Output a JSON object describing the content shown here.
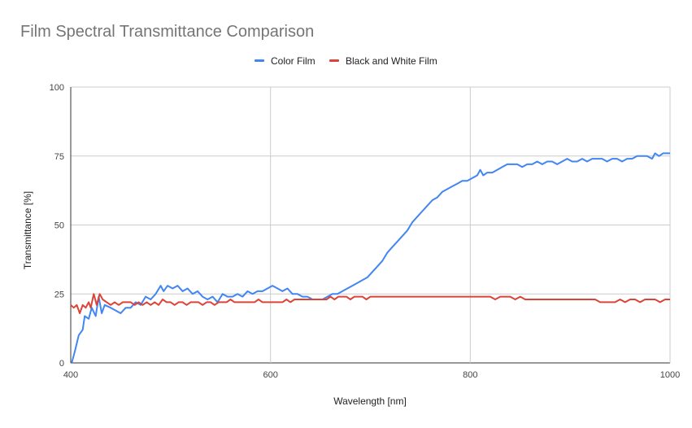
{
  "chart_data": {
    "type": "line",
    "title": "Film Spectral Transmittance Comparison",
    "xlabel": "Wavelength [nm]",
    "ylabel": "Transmittance [%]",
    "xlim": [
      400,
      1000
    ],
    "ylim": [
      0,
      100
    ],
    "x_ticks": [
      "400",
      "600",
      "800",
      "1000"
    ],
    "y_ticks": [
      "0",
      "25",
      "50",
      "75",
      "100"
    ],
    "grid": true,
    "legend_position": "top",
    "series": [
      {
        "name": "Color Film",
        "color": "#4285f4",
        "points": [
          [
            401,
            0
          ],
          [
            404,
            4
          ],
          [
            408,
            10
          ],
          [
            412,
            12
          ],
          [
            414,
            17
          ],
          [
            418,
            16
          ],
          [
            421,
            20
          ],
          [
            425,
            17
          ],
          [
            428,
            24
          ],
          [
            431,
            18
          ],
          [
            434,
            21
          ],
          [
            440,
            20
          ],
          [
            445,
            19
          ],
          [
            450,
            18
          ],
          [
            455,
            20
          ],
          [
            460,
            20
          ],
          [
            465,
            22
          ],
          [
            470,
            21
          ],
          [
            475,
            24
          ],
          [
            480,
            23
          ],
          [
            485,
            25
          ],
          [
            490,
            28
          ],
          [
            493,
            26
          ],
          [
            497,
            28
          ],
          [
            502,
            27
          ],
          [
            507,
            28
          ],
          [
            512,
            26
          ],
          [
            517,
            27
          ],
          [
            522,
            25
          ],
          [
            527,
            26
          ],
          [
            532,
            24
          ],
          [
            537,
            23
          ],
          [
            542,
            24
          ],
          [
            547,
            22
          ],
          [
            552,
            25
          ],
          [
            557,
            24
          ],
          [
            562,
            24
          ],
          [
            567,
            25
          ],
          [
            572,
            24
          ],
          [
            577,
            26
          ],
          [
            582,
            25
          ],
          [
            587,
            26
          ],
          [
            592,
            26
          ],
          [
            597,
            27
          ],
          [
            602,
            28
          ],
          [
            607,
            27
          ],
          [
            612,
            26
          ],
          [
            617,
            27
          ],
          [
            622,
            25
          ],
          [
            627,
            25
          ],
          [
            632,
            24
          ],
          [
            637,
            24
          ],
          [
            642,
            23
          ],
          [
            647,
            23
          ],
          [
            652,
            23
          ],
          [
            657,
            24
          ],
          [
            662,
            25
          ],
          [
            667,
            25
          ],
          [
            672,
            26
          ],
          [
            677,
            27
          ],
          [
            682,
            28
          ],
          [
            687,
            29
          ],
          [
            692,
            30
          ],
          [
            697,
            31
          ],
          [
            702,
            33
          ],
          [
            707,
            35
          ],
          [
            712,
            37
          ],
          [
            717,
            40
          ],
          [
            722,
            42
          ],
          [
            727,
            44
          ],
          [
            732,
            46
          ],
          [
            737,
            48
          ],
          [
            742,
            51
          ],
          [
            747,
            53
          ],
          [
            752,
            55
          ],
          [
            757,
            57
          ],
          [
            762,
            59
          ],
          [
            767,
            60
          ],
          [
            772,
            62
          ],
          [
            777,
            63
          ],
          [
            782,
            64
          ],
          [
            787,
            65
          ],
          [
            792,
            66
          ],
          [
            797,
            66
          ],
          [
            802,
            67
          ],
          [
            807,
            68
          ],
          [
            810,
            70
          ],
          [
            813,
            68
          ],
          [
            817,
            69
          ],
          [
            822,
            69
          ],
          [
            827,
            70
          ],
          [
            832,
            71
          ],
          [
            837,
            72
          ],
          [
            842,
            72
          ],
          [
            847,
            72
          ],
          [
            852,
            71
          ],
          [
            857,
            72
          ],
          [
            862,
            72
          ],
          [
            867,
            73
          ],
          [
            872,
            72
          ],
          [
            877,
            73
          ],
          [
            882,
            73
          ],
          [
            887,
            72
          ],
          [
            892,
            73
          ],
          [
            897,
            74
          ],
          [
            902,
            73
          ],
          [
            907,
            73
          ],
          [
            912,
            74
          ],
          [
            917,
            73
          ],
          [
            922,
            74
          ],
          [
            927,
            74
          ],
          [
            932,
            74
          ],
          [
            937,
            73
          ],
          [
            942,
            74
          ],
          [
            947,
            74
          ],
          [
            952,
            73
          ],
          [
            957,
            74
          ],
          [
            962,
            74
          ],
          [
            967,
            75
          ],
          [
            972,
            75
          ],
          [
            977,
            75
          ],
          [
            982,
            74
          ],
          [
            985,
            76
          ],
          [
            989,
            75
          ],
          [
            993,
            76
          ],
          [
            997,
            76
          ],
          [
            1000,
            76
          ]
        ]
      },
      {
        "name": "Black and White Film",
        "color": "#db4437",
        "points": [
          [
            400,
            21
          ],
          [
            403,
            20
          ],
          [
            406,
            21
          ],
          [
            409,
            18
          ],
          [
            412,
            21
          ],
          [
            415,
            20
          ],
          [
            418,
            22
          ],
          [
            420,
            20
          ],
          [
            423,
            25
          ],
          [
            426,
            21
          ],
          [
            429,
            25
          ],
          [
            432,
            23
          ],
          [
            436,
            22
          ],
          [
            440,
            21
          ],
          [
            444,
            22
          ],
          [
            448,
            21
          ],
          [
            452,
            22
          ],
          [
            456,
            22
          ],
          [
            460,
            22
          ],
          [
            464,
            21
          ],
          [
            468,
            22
          ],
          [
            472,
            21
          ],
          [
            476,
            22
          ],
          [
            480,
            21
          ],
          [
            484,
            22
          ],
          [
            488,
            21
          ],
          [
            492,
            23
          ],
          [
            496,
            22
          ],
          [
            500,
            22
          ],
          [
            504,
            21
          ],
          [
            508,
            22
          ],
          [
            512,
            22
          ],
          [
            516,
            21
          ],
          [
            520,
            22
          ],
          [
            524,
            22
          ],
          [
            528,
            22
          ],
          [
            532,
            21
          ],
          [
            536,
            22
          ],
          [
            540,
            22
          ],
          [
            544,
            21
          ],
          [
            548,
            22
          ],
          [
            552,
            22
          ],
          [
            556,
            22
          ],
          [
            560,
            23
          ],
          [
            564,
            22
          ],
          [
            568,
            22
          ],
          [
            572,
            22
          ],
          [
            576,
            22
          ],
          [
            580,
            22
          ],
          [
            584,
            22
          ],
          [
            588,
            23
          ],
          [
            592,
            22
          ],
          [
            596,
            22
          ],
          [
            600,
            22
          ],
          [
            604,
            22
          ],
          [
            608,
            22
          ],
          [
            612,
            22
          ],
          [
            616,
            23
          ],
          [
            620,
            22
          ],
          [
            624,
            23
          ],
          [
            628,
            23
          ],
          [
            632,
            23
          ],
          [
            636,
            23
          ],
          [
            640,
            23
          ],
          [
            644,
            23
          ],
          [
            648,
            23
          ],
          [
            652,
            23
          ],
          [
            656,
            23
          ],
          [
            660,
            24
          ],
          [
            664,
            23
          ],
          [
            668,
            24
          ],
          [
            672,
            24
          ],
          [
            676,
            24
          ],
          [
            680,
            23
          ],
          [
            684,
            24
          ],
          [
            688,
            24
          ],
          [
            692,
            24
          ],
          [
            696,
            23
          ],
          [
            700,
            24
          ],
          [
            705,
            24
          ],
          [
            710,
            24
          ],
          [
            715,
            24
          ],
          [
            720,
            24
          ],
          [
            725,
            24
          ],
          [
            730,
            24
          ],
          [
            735,
            24
          ],
          [
            740,
            24
          ],
          [
            745,
            24
          ],
          [
            750,
            24
          ],
          [
            755,
            24
          ],
          [
            760,
            24
          ],
          [
            765,
            24
          ],
          [
            770,
            24
          ],
          [
            775,
            24
          ],
          [
            780,
            24
          ],
          [
            785,
            24
          ],
          [
            790,
            24
          ],
          [
            795,
            24
          ],
          [
            800,
            24
          ],
          [
            805,
            24
          ],
          [
            810,
            24
          ],
          [
            815,
            24
          ],
          [
            820,
            24
          ],
          [
            825,
            23
          ],
          [
            830,
            24
          ],
          [
            835,
            24
          ],
          [
            840,
            24
          ],
          [
            845,
            23
          ],
          [
            850,
            24
          ],
          [
            855,
            23
          ],
          [
            860,
            23
          ],
          [
            865,
            23
          ],
          [
            870,
            23
          ],
          [
            875,
            23
          ],
          [
            880,
            23
          ],
          [
            885,
            23
          ],
          [
            890,
            23
          ],
          [
            895,
            23
          ],
          [
            900,
            23
          ],
          [
            905,
            23
          ],
          [
            910,
            23
          ],
          [
            915,
            23
          ],
          [
            920,
            23
          ],
          [
            925,
            23
          ],
          [
            930,
            22
          ],
          [
            935,
            22
          ],
          [
            940,
            22
          ],
          [
            945,
            22
          ],
          [
            950,
            23
          ],
          [
            955,
            22
          ],
          [
            960,
            23
          ],
          [
            965,
            23
          ],
          [
            970,
            22
          ],
          [
            975,
            23
          ],
          [
            980,
            23
          ],
          [
            985,
            23
          ],
          [
            990,
            22
          ],
          [
            995,
            23
          ],
          [
            1000,
            23
          ]
        ]
      }
    ]
  }
}
